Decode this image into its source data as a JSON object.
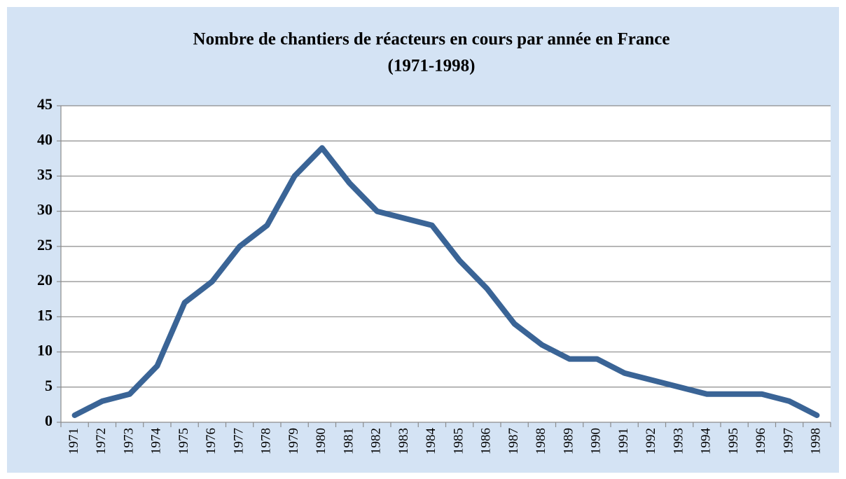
{
  "chart_data": {
    "type": "line",
    "title": [
      "Nombre de chantiers de réacteurs en cours par année en France",
      "(1971-1998)"
    ],
    "categories": [
      "1971",
      "1972",
      "1973",
      "1974",
      "1975",
      "1976",
      "1977",
      "1978",
      "1979",
      "1980",
      "1981",
      "1982",
      "1983",
      "1984",
      "1985",
      "1986",
      "1987",
      "1988",
      "1989",
      "1990",
      "1991",
      "1992",
      "1993",
      "1994",
      "1995",
      "1996",
      "1997",
      "1998"
    ],
    "values": [
      1,
      3,
      4,
      8,
      17,
      20,
      25,
      28,
      35,
      39,
      34,
      30,
      29,
      28,
      23,
      19,
      14,
      11,
      9,
      9,
      7,
      6,
      5,
      4,
      4,
      4,
      3,
      1
    ],
    "color": "#3a6496",
    "ylim": [
      0,
      45
    ],
    "yticks": [
      0,
      5,
      10,
      15,
      20,
      25,
      30,
      35,
      40,
      45
    ],
    "grid": true
  }
}
